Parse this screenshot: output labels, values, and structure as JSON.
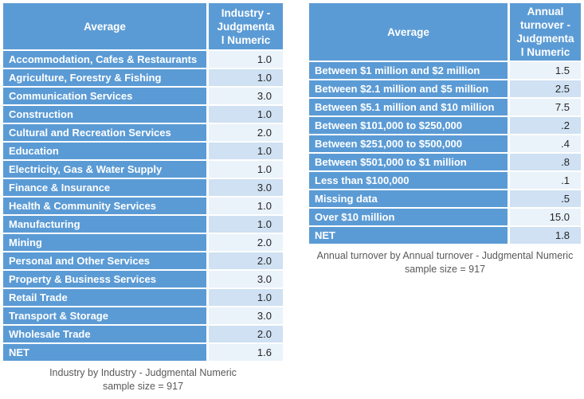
{
  "colors": {
    "header_bg": "#5b9bd5",
    "label_bg": "#5b9bd5",
    "row_light": "#eaf2fa",
    "row_alt": "#cfe1f2",
    "header_text": "#ffffff",
    "value_text": "#262626",
    "caption_text": "#595959"
  },
  "tables": [
    {
      "id": "industry",
      "header": {
        "label": "Average",
        "value": "Industry -\nJudgmenta\nl Numeric"
      },
      "rows": [
        {
          "label": "Accommodation, Cafes & Restaurants",
          "value": "1.0"
        },
        {
          "label": "Agriculture, Forestry & Fishing",
          "value": "1.0"
        },
        {
          "label": "Communication Services",
          "value": "3.0"
        },
        {
          "label": "Construction",
          "value": "1.0"
        },
        {
          "label": "Cultural and Recreation Services",
          "value": "2.0"
        },
        {
          "label": "Education",
          "value": "1.0"
        },
        {
          "label": "Electricity, Gas & Water Supply",
          "value": "1.0"
        },
        {
          "label": "Finance & Insurance",
          "value": "3.0"
        },
        {
          "label": "Health & Community Services",
          "value": "1.0"
        },
        {
          "label": "Manufacturing",
          "value": "1.0"
        },
        {
          "label": "Mining",
          "value": "2.0"
        },
        {
          "label": "Personal and Other Services",
          "value": "2.0"
        },
        {
          "label": "Property & Business Services",
          "value": "3.0"
        },
        {
          "label": "Retail Trade",
          "value": "1.0"
        },
        {
          "label": "Transport & Storage",
          "value": "3.0"
        },
        {
          "label": "Wholesale Trade",
          "value": "2.0"
        },
        {
          "label": "NET",
          "value": "1.6"
        }
      ],
      "caption_line1": "Industry by Industry - Judgmental Numeric",
      "caption_line2": "sample size = 917"
    },
    {
      "id": "turnover",
      "header": {
        "label": "Average",
        "value": "Annual\nturnover -\nJudgmenta\nl Numeric"
      },
      "rows": [
        {
          "label": "Between $1 million and $2 million",
          "value": "1.5"
        },
        {
          "label": "Between $2.1 million and $5 million",
          "value": "2.5"
        },
        {
          "label": "Between $5.1 million and $10 million",
          "value": "7.5"
        },
        {
          "label": "Between $101,000 to $250,000",
          "value": ".2"
        },
        {
          "label": "Between $251,000 to $500,000",
          "value": ".4"
        },
        {
          "label": "Between $501,000 to $1 million",
          "value": ".8"
        },
        {
          "label": "Less than $100,000",
          "value": ".1"
        },
        {
          "label": "Missing data",
          "value": ".5"
        },
        {
          "label": "Over $10 million",
          "value": "15.0"
        },
        {
          "label": "NET",
          "value": "1.8"
        }
      ],
      "caption_line1": "Annual turnover by Annual turnover - Judgmental Numeric",
      "caption_line2": "sample size = 917"
    }
  ],
  "chart_data": [
    {
      "type": "table",
      "title": "Industry by Industry - Judgmental Numeric",
      "subtitle": "sample size = 917",
      "columns": [
        "Average",
        "Industry - Judgmental Numeric"
      ],
      "categories": [
        "Accommodation, Cafes & Restaurants",
        "Agriculture, Forestry & Fishing",
        "Communication Services",
        "Construction",
        "Cultural and Recreation Services",
        "Education",
        "Electricity, Gas & Water Supply",
        "Finance & Insurance",
        "Health & Community Services",
        "Manufacturing",
        "Mining",
        "Personal and Other Services",
        "Property & Business Services",
        "Retail Trade",
        "Transport & Storage",
        "Wholesale Trade",
        "NET"
      ],
      "values": [
        1.0,
        1.0,
        3.0,
        1.0,
        2.0,
        1.0,
        1.0,
        3.0,
        1.0,
        1.0,
        2.0,
        2.0,
        3.0,
        1.0,
        3.0,
        2.0,
        1.6
      ],
      "sample_size": 917
    },
    {
      "type": "table",
      "title": "Annual turnover by Annual turnover - Judgmental Numeric",
      "subtitle": "sample size = 917",
      "columns": [
        "Average",
        "Annual turnover - Judgmental Numeric"
      ],
      "categories": [
        "Between $1 million and $2 million",
        "Between $2.1 million and $5 million",
        "Between $5.1 million and $10 million",
        "Between $101,000 to $250,000",
        "Between $251,000 to $500,000",
        "Between $501,000 to $1 million",
        "Less than $100,000",
        "Missing data",
        "Over $10 million",
        "NET"
      ],
      "values": [
        1.5,
        2.5,
        7.5,
        0.2,
        0.4,
        0.8,
        0.1,
        0.5,
        15.0,
        1.8
      ],
      "sample_size": 917
    }
  ]
}
